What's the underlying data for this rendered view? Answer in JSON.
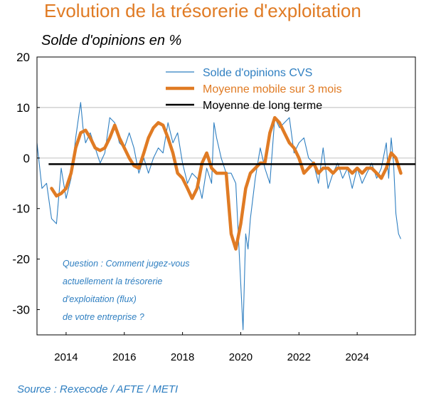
{
  "header": {
    "title": "Evolution de la trésorerie d'exploitation",
    "subtitle": "Solde d'opinions en %"
  },
  "source": "Source : Rexecode / AFTE / METI",
  "colors": {
    "title": "#e07b24",
    "series_raw": "#2f7fc1",
    "series_ma": "#e07b24",
    "long_term": "#000000",
    "annotation": "#2f7fc1",
    "gridline": "#c8c8c8"
  },
  "annotation_lines": [
    "Question : Comment jugez-vous",
    "actuellement la trésorerie",
    "d'exploitation (flux)",
    "de votre entreprise ?"
  ],
  "chart_data": {
    "type": "line",
    "title": "Evolution de la trésorerie d'exploitation",
    "ylabel": "Solde d'opinions en %",
    "xlabel": "",
    "xlim": [
      2013.0,
      2026.0
    ],
    "ylim": [
      -35,
      20
    ],
    "x_ticks": [
      2014,
      2016,
      2018,
      2020,
      2022,
      2024
    ],
    "y_ticks": [
      20,
      10,
      0,
      -10,
      -20,
      -30
    ],
    "y_gridlines": [
      10,
      0
    ],
    "legend_position": "top-right",
    "series": [
      {
        "name": "Solde d'opinions CVS",
        "style": "thin-line",
        "x": [
          2013.0,
          2013.17,
          2013.33,
          2013.5,
          2013.67,
          2013.83,
          2014.0,
          2014.17,
          2014.33,
          2014.5,
          2014.58,
          2014.67,
          2014.83,
          2015.0,
          2015.17,
          2015.33,
          2015.5,
          2015.67,
          2015.83,
          2016.0,
          2016.17,
          2016.33,
          2016.5,
          2016.67,
          2016.83,
          2017.0,
          2017.17,
          2017.33,
          2017.5,
          2017.67,
          2017.83,
          2018.0,
          2018.17,
          2018.33,
          2018.5,
          2018.67,
          2018.83,
          2019.0,
          2019.08,
          2019.17,
          2019.33,
          2019.5,
          2019.67,
          2019.83,
          2020.0,
          2020.08,
          2020.17,
          2020.25,
          2020.33,
          2020.5,
          2020.67,
          2020.83,
          2021.0,
          2021.17,
          2021.33,
          2021.5,
          2021.67,
          2021.83,
          2022.0,
          2022.17,
          2022.33,
          2022.5,
          2022.67,
          2022.83,
          2023.0,
          2023.17,
          2023.33,
          2023.5,
          2023.67,
          2023.83,
          2024.0,
          2024.17,
          2024.33,
          2024.5,
          2024.67,
          2024.83,
          2025.0,
          2025.08,
          2025.17,
          2025.25,
          2025.33,
          2025.42,
          2025.5
        ],
        "values": [
          3,
          -6,
          -5,
          -12,
          -13,
          -2,
          -8,
          -4,
          4,
          11,
          6,
          3,
          5,
          2,
          -1,
          1,
          8,
          7,
          3,
          2,
          5,
          2,
          -3,
          0,
          -3,
          0,
          2,
          1,
          7,
          3,
          5,
          -1,
          -5,
          -3,
          -4,
          -8,
          -2,
          -5,
          7,
          4,
          0,
          -3,
          -3,
          -5,
          -25,
          -34,
          -15,
          -18,
          -12,
          -4,
          2,
          -2,
          -5,
          8,
          6,
          7,
          8,
          1,
          3,
          4,
          0,
          -1,
          -5,
          2,
          -6,
          -3,
          -1,
          -4,
          -2,
          -6,
          -2,
          -5,
          -3,
          -1,
          -4,
          -2,
          3,
          -4,
          4,
          -1,
          -11,
          -15,
          -16
        ]
      },
      {
        "name": "Moyenne mobile sur 3 mois",
        "style": "thick-line",
        "x": [
          2013.5,
          2013.67,
          2013.83,
          2014.0,
          2014.17,
          2014.33,
          2014.5,
          2014.67,
          2014.83,
          2015.0,
          2015.17,
          2015.33,
          2015.5,
          2015.67,
          2015.83,
          2016.0,
          2016.17,
          2016.33,
          2016.5,
          2016.67,
          2016.83,
          2017.0,
          2017.17,
          2017.33,
          2017.5,
          2017.67,
          2017.83,
          2018.0,
          2018.17,
          2018.33,
          2018.5,
          2018.67,
          2018.83,
          2019.0,
          2019.17,
          2019.33,
          2019.5,
          2019.67,
          2019.83,
          2020.0,
          2020.17,
          2020.33,
          2020.5,
          2020.67,
          2020.83,
          2021.0,
          2021.17,
          2021.33,
          2021.5,
          2021.67,
          2021.83,
          2022.0,
          2022.17,
          2022.33,
          2022.5,
          2022.67,
          2022.83,
          2023.0,
          2023.17,
          2023.33,
          2023.5,
          2023.67,
          2023.83,
          2024.0,
          2024.17,
          2024.33,
          2024.5,
          2024.67,
          2024.83,
          2025.0,
          2025.17,
          2025.33,
          2025.5
        ],
        "values": [
          -6,
          -7.5,
          -7,
          -6,
          -3,
          2,
          5,
          5.5,
          4,
          2,
          1.5,
          2,
          4,
          6.5,
          4,
          2,
          0,
          -1.5,
          -2,
          1,
          4,
          6,
          7,
          6.5,
          4,
          1,
          -3,
          -4,
          -6,
          -8,
          -6,
          -1,
          1,
          -2,
          -3,
          -3,
          -3,
          -15,
          -18,
          -13,
          -6,
          -3,
          -2,
          -1,
          -1,
          5,
          8,
          7,
          5,
          3,
          2,
          0,
          -3,
          -2,
          -1,
          -3,
          -2,
          -2,
          -3,
          -2,
          -2,
          -2,
          -3,
          -2,
          -3,
          -2,
          -2,
          -3,
          -4,
          -2,
          1,
          0,
          -3
        ]
      },
      {
        "name": "Moyenne de long terme",
        "style": "flat-line",
        "value": -1.2
      }
    ]
  }
}
